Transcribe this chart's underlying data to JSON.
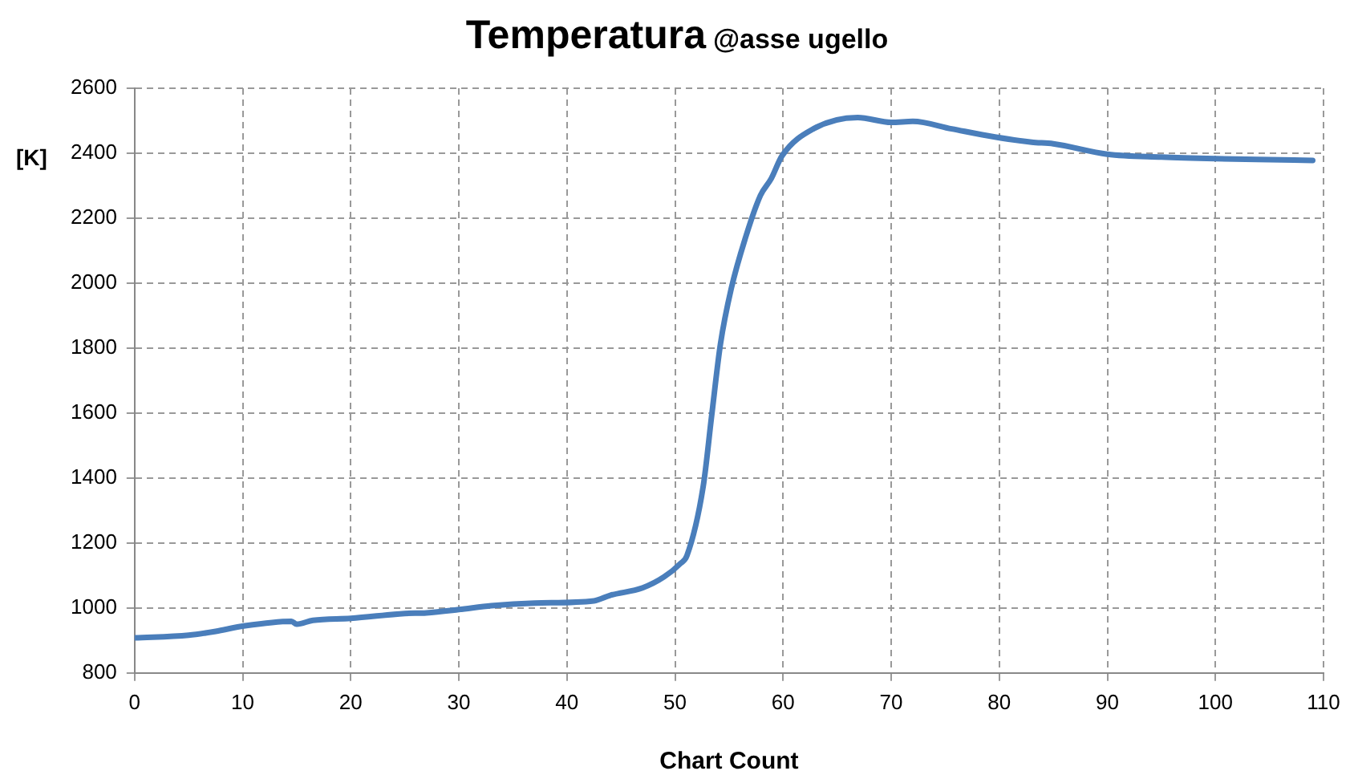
{
  "chart_data": {
    "type": "line",
    "title": "Temperatura",
    "subtitle": "@asse ugello",
    "xlabel": "Chart Count",
    "ylabel": "[K]",
    "xlim": [
      0,
      110
    ],
    "xticks": [
      0,
      10,
      20,
      30,
      40,
      50,
      60,
      70,
      80,
      90,
      100,
      110
    ],
    "ylim": [
      800,
      2600
    ],
    "yticks": [
      800,
      1000,
      1200,
      1400,
      1600,
      1800,
      2000,
      2200,
      2400,
      2600
    ],
    "grid": true,
    "legend": false,
    "marker": "none",
    "line_style": "solid",
    "x": [
      0,
      5,
      7.5,
      10,
      14.5,
      15,
      16.5,
      20,
      25,
      27,
      30,
      33,
      37,
      42.5,
      44,
      47,
      49,
      50.5,
      51.1,
      52.6,
      53.4,
      54.2,
      55.2,
      56.5,
      57.9,
      58.9,
      59.9,
      62.8,
      66.9,
      70,
      72,
      75.6,
      79.6,
      83,
      85,
      90,
      95,
      100,
      105,
      109
    ],
    "series": [
      {
        "color": "#4a7ebb",
        "values": [
          908,
          916,
          928,
          944,
          959,
          950,
          962,
          968,
          983,
          985,
          995,
          1007,
          1015,
          1022,
          1039,
          1062,
          1096,
          1137,
          1161,
          1373,
          1595,
          1812,
          1983,
          2138,
          2270,
          2322,
          2392,
          2475,
          2510,
          2495,
          2498,
          2475,
          2450,
          2434,
          2429,
          2397,
          2388,
          2383,
          2380,
          2378
        ]
      }
    ]
  }
}
